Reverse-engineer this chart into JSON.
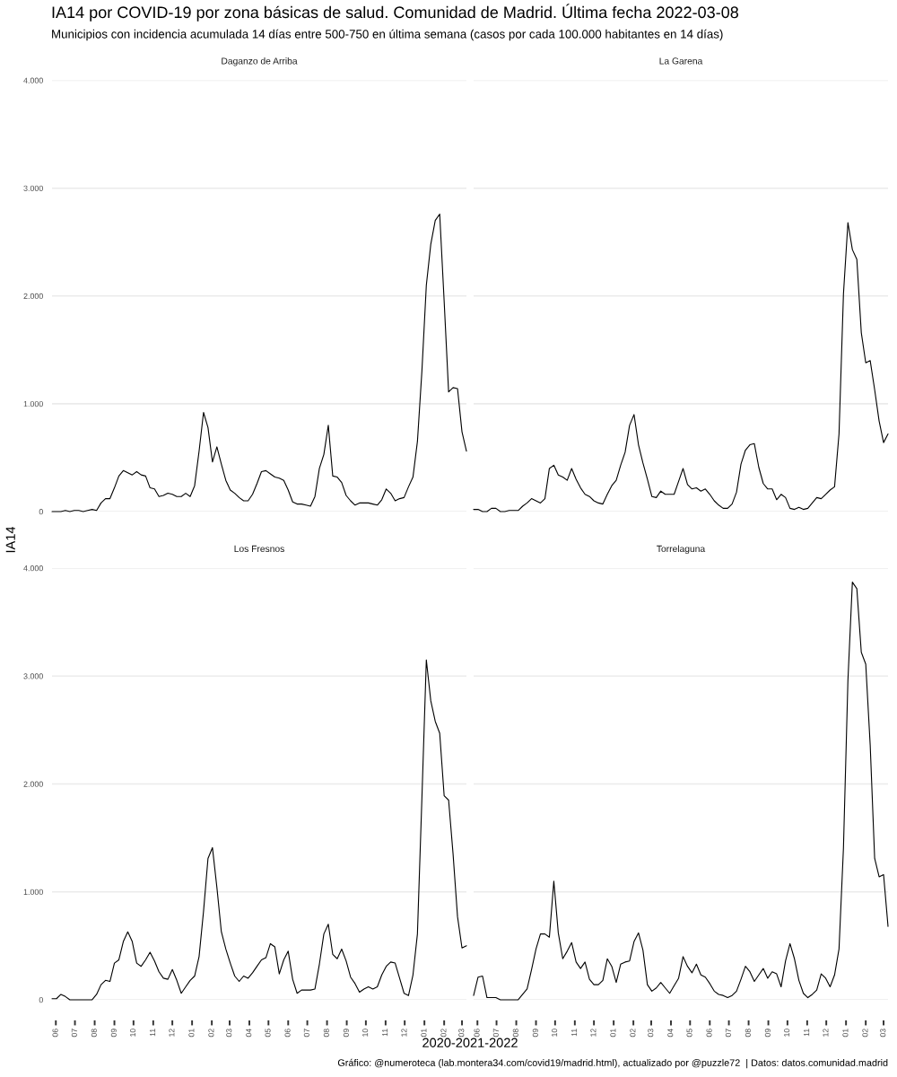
{
  "chart_data": [
    {
      "type": "other",
      "title": "IA14 por COVID-19 por zona básicas de salud. Comunidad de Madrid. Última fecha 2022-03-08",
      "subtitle": "Municipios con incidencia acumulada 14 días entre 500-750 en última semana (casos por cada 100.000 habitantes en 14 días)",
      "xlabel": "2020-2021-2022",
      "ylabel": "IA14",
      "annotations": [
        "Gráfico: @numeroteca (lab.montera34.com/covid19/madrid.html), actualizado por @puzzle72  | Datos: datos.comunidad.madrid"
      ]
    },
    {
      "type": "line",
      "title": "Daganzo de Arriba",
      "x": [
        "2020-05-26",
        "2020-06-02",
        "2020-06-09",
        "2020-06-16",
        "2020-06-23",
        "2020-06-30",
        "2020-07-07",
        "2020-07-14",
        "2020-07-21",
        "2020-07-28",
        "2020-08-04",
        "2020-08-11",
        "2020-08-18",
        "2020-08-25",
        "2020-09-01",
        "2020-09-08",
        "2020-09-15",
        "2020-09-22",
        "2020-09-29",
        "2020-10-06",
        "2020-10-13",
        "2020-10-20",
        "2020-10-27",
        "2020-11-03",
        "2020-11-10",
        "2020-11-17",
        "2020-11-24",
        "2020-12-01",
        "2020-12-08",
        "2020-12-15",
        "2020-12-22",
        "2020-12-29",
        "2021-01-05",
        "2021-01-12",
        "2021-01-19",
        "2021-01-26",
        "2021-02-02",
        "2021-02-09",
        "2021-02-16",
        "2021-02-23",
        "2021-03-02",
        "2021-03-09",
        "2021-03-16",
        "2021-03-23",
        "2021-03-30",
        "2021-04-06",
        "2021-04-13",
        "2021-04-20",
        "2021-04-27",
        "2021-05-04",
        "2021-05-11",
        "2021-05-18",
        "2021-05-25",
        "2021-06-01",
        "2021-06-08",
        "2021-06-15",
        "2021-06-22",
        "2021-06-29",
        "2021-07-06",
        "2021-07-13",
        "2021-07-20",
        "2021-07-27",
        "2021-08-03",
        "2021-08-10",
        "2021-08-17",
        "2021-08-24",
        "2021-08-31",
        "2021-09-07",
        "2021-09-14",
        "2021-09-21",
        "2021-09-28",
        "2021-10-05",
        "2021-10-12",
        "2021-10-19",
        "2021-10-26",
        "2021-11-02",
        "2021-11-09",
        "2021-11-16",
        "2021-11-23",
        "2021-11-30",
        "2021-12-07",
        "2021-12-14",
        "2021-12-21",
        "2021-12-28",
        "2022-01-04",
        "2022-01-11",
        "2022-01-18",
        "2022-01-25",
        "2022-02-01",
        "2022-02-08",
        "2022-02-15",
        "2022-02-22",
        "2022-03-01",
        "2022-03-08"
      ],
      "series": [
        {
          "color": "#000000",
          "values": [
            0,
            0,
            0,
            10,
            0,
            10,
            10,
            0,
            10,
            20,
            10,
            80,
            120,
            120,
            220,
            330,
            380,
            360,
            340,
            370,
            340,
            330,
            220,
            210,
            140,
            150,
            170,
            160,
            140,
            140,
            170,
            140,
            240,
            560,
            920,
            780,
            460,
            600,
            440,
            290,
            200,
            170,
            130,
            100,
            100,
            160,
            260,
            370,
            380,
            350,
            320,
            310,
            290,
            200,
            90,
            70,
            70,
            60,
            50,
            140,
            400,
            530,
            800,
            330,
            320,
            270,
            150,
            100,
            60,
            80,
            80,
            80,
            70,
            60,
            110,
            210,
            170,
            100,
            120,
            130,
            230,
            320,
            650,
            1300,
            2100,
            2480,
            2700,
            2760,
            1950,
            1110,
            1150,
            1140,
            740,
            560
          ]
        }
      ],
      "xlim": [
        "2020-05-26",
        "2022-03-08"
      ],
      "ylim": [
        0,
        4000
      ],
      "yticks": [
        0,
        {
          "value": 1000,
          "label": "1.000"
        },
        {
          "value": 2000,
          "label": "2.000"
        },
        {
          "value": 3000,
          "label": "3.000"
        },
        {
          "value": 4000,
          "label": "4.000"
        }
      ],
      "grid": "y",
      "tick_labels": "y"
    },
    {
      "type": "line",
      "title": "La Garena",
      "x": [
        "2020-05-26",
        "2020-06-02",
        "2020-06-09",
        "2020-06-16",
        "2020-06-23",
        "2020-06-30",
        "2020-07-07",
        "2020-07-14",
        "2020-07-21",
        "2020-07-28",
        "2020-08-04",
        "2020-08-11",
        "2020-08-18",
        "2020-08-25",
        "2020-09-01",
        "2020-09-08",
        "2020-09-15",
        "2020-09-22",
        "2020-09-29",
        "2020-10-06",
        "2020-10-13",
        "2020-10-20",
        "2020-10-27",
        "2020-11-03",
        "2020-11-10",
        "2020-11-17",
        "2020-11-24",
        "2020-12-01",
        "2020-12-08",
        "2020-12-15",
        "2020-12-22",
        "2020-12-29",
        "2021-01-05",
        "2021-01-12",
        "2021-01-19",
        "2021-01-26",
        "2021-02-02",
        "2021-02-09",
        "2021-02-16",
        "2021-02-23",
        "2021-03-02",
        "2021-03-09",
        "2021-03-16",
        "2021-03-23",
        "2021-03-30",
        "2021-04-06",
        "2021-04-13",
        "2021-04-20",
        "2021-04-27",
        "2021-05-04",
        "2021-05-11",
        "2021-05-18",
        "2021-05-25",
        "2021-06-01",
        "2021-06-08",
        "2021-06-15",
        "2021-06-22",
        "2021-06-29",
        "2021-07-06",
        "2021-07-13",
        "2021-07-20",
        "2021-07-27",
        "2021-08-03",
        "2021-08-10",
        "2021-08-17",
        "2021-08-24",
        "2021-08-31",
        "2021-09-07",
        "2021-09-14",
        "2021-09-21",
        "2021-09-28",
        "2021-10-05",
        "2021-10-12",
        "2021-10-19",
        "2021-10-26",
        "2021-11-02",
        "2021-11-09",
        "2021-11-16",
        "2021-11-23",
        "2021-11-30",
        "2021-12-07",
        "2021-12-14",
        "2021-12-21",
        "2021-12-28",
        "2022-01-04",
        "2022-01-11",
        "2022-01-18",
        "2022-01-25",
        "2022-02-01",
        "2022-02-08",
        "2022-02-15",
        "2022-02-22",
        "2022-03-01",
        "2022-03-08"
      ],
      "series": [
        {
          "color": "#000000",
          "values": [
            20,
            20,
            0,
            0,
            30,
            30,
            0,
            0,
            10,
            10,
            10,
            50,
            80,
            120,
            100,
            80,
            120,
            400,
            430,
            340,
            320,
            290,
            400,
            300,
            220,
            160,
            140,
            100,
            80,
            70,
            160,
            240,
            290,
            430,
            550,
            800,
            900,
            620,
            450,
            300,
            140,
            130,
            190,
            160,
            160,
            160,
            280,
            400,
            250,
            210,
            220,
            190,
            210,
            160,
            100,
            60,
            30,
            30,
            70,
            180,
            440,
            570,
            620,
            630,
            410,
            260,
            210,
            210,
            110,
            160,
            130,
            30,
            20,
            40,
            20,
            30,
            80,
            130,
            120,
            160,
            200,
            230,
            720,
            2020,
            2680,
            2430,
            2340,
            1660,
            1380,
            1400,
            1130,
            840,
            640,
            720
          ]
        }
      ],
      "xlim": [
        "2020-05-26",
        "2022-03-08"
      ],
      "ylim": [
        0,
        4000
      ],
      "yticks": [
        {
          "value": 0,
          "label": null
        },
        {
          "value": 1000,
          "label": null
        },
        {
          "value": 2000,
          "label": null
        },
        {
          "value": 3000,
          "label": null
        },
        {
          "value": 4000,
          "label": null
        }
      ],
      "grid": "y",
      "tick_labels": false
    },
    {
      "type": "line",
      "title": "Los Fresnos",
      "x": [
        "2020-05-26",
        "2020-06-02",
        "2020-06-09",
        "2020-06-16",
        "2020-06-23",
        "2020-06-30",
        "2020-07-07",
        "2020-07-14",
        "2020-07-21",
        "2020-07-28",
        "2020-08-04",
        "2020-08-11",
        "2020-08-18",
        "2020-08-25",
        "2020-09-01",
        "2020-09-08",
        "2020-09-15",
        "2020-09-22",
        "2020-09-29",
        "2020-10-06",
        "2020-10-13",
        "2020-10-20",
        "2020-10-27",
        "2020-11-03",
        "2020-11-10",
        "2020-11-17",
        "2020-11-24",
        "2020-12-01",
        "2020-12-08",
        "2020-12-15",
        "2020-12-22",
        "2020-12-29",
        "2021-01-05",
        "2021-01-12",
        "2021-01-19",
        "2021-01-26",
        "2021-02-02",
        "2021-02-09",
        "2021-02-16",
        "2021-02-23",
        "2021-03-02",
        "2021-03-09",
        "2021-03-16",
        "2021-03-23",
        "2021-03-30",
        "2021-04-06",
        "2021-04-13",
        "2021-04-20",
        "2021-04-27",
        "2021-05-04",
        "2021-05-11",
        "2021-05-18",
        "2021-05-25",
        "2021-06-01",
        "2021-06-08",
        "2021-06-15",
        "2021-06-22",
        "2021-06-29",
        "2021-07-06",
        "2021-07-13",
        "2021-07-20",
        "2021-07-27",
        "2021-08-03",
        "2021-08-10",
        "2021-08-17",
        "2021-08-24",
        "2021-08-31",
        "2021-09-07",
        "2021-09-14",
        "2021-09-21",
        "2021-09-28",
        "2021-10-05",
        "2021-10-12",
        "2021-10-19",
        "2021-10-26",
        "2021-11-02",
        "2021-11-09",
        "2021-11-16",
        "2021-11-23",
        "2021-11-30",
        "2021-12-07",
        "2021-12-14",
        "2021-12-21",
        "2021-12-28",
        "2022-01-04",
        "2022-01-11",
        "2022-01-18",
        "2022-01-25",
        "2022-02-01",
        "2022-02-08",
        "2022-02-15",
        "2022-02-22",
        "2022-03-01",
        "2022-03-08"
      ],
      "series": [
        {
          "color": "#000000",
          "values": [
            10,
            10,
            50,
            30,
            0,
            0,
            0,
            0,
            0,
            0,
            50,
            140,
            180,
            170,
            340,
            370,
            540,
            630,
            540,
            340,
            310,
            370,
            440,
            360,
            260,
            200,
            190,
            280,
            180,
            60,
            120,
            180,
            220,
            400,
            820,
            1310,
            1410,
            1040,
            630,
            470,
            340,
            220,
            170,
            220,
            200,
            250,
            310,
            370,
            390,
            520,
            490,
            240,
            370,
            450,
            190,
            60,
            90,
            90,
            90,
            100,
            330,
            610,
            700,
            420,
            380,
            470,
            360,
            210,
            150,
            70,
            100,
            120,
            100,
            120,
            230,
            310,
            350,
            340,
            200,
            60,
            40,
            230,
            610,
            1860,
            3150,
            2770,
            2580,
            2470,
            1890,
            1850,
            1350,
            770,
            480,
            500
          ]
        }
      ],
      "xlim": [
        "2020-05-26",
        "2022-03-08"
      ],
      "xticks": [
        {
          "value": "2020-06-01",
          "label": "06"
        },
        {
          "value": "2020-07-01",
          "label": "07"
        },
        {
          "value": "2020-08-01",
          "label": "08"
        },
        {
          "value": "2020-09-01",
          "label": "09"
        },
        {
          "value": "2020-10-01",
          "label": "10"
        },
        {
          "value": "2020-11-01",
          "label": "11"
        },
        {
          "value": "2020-12-01",
          "label": "12"
        },
        {
          "value": "2021-01-01",
          "label": "01"
        },
        {
          "value": "2021-02-01",
          "label": "02"
        },
        {
          "value": "2021-03-01",
          "label": "03"
        },
        {
          "value": "2021-04-01",
          "label": "04"
        },
        {
          "value": "2021-05-01",
          "label": "05"
        },
        {
          "value": "2021-06-01",
          "label": "06"
        },
        {
          "value": "2021-07-01",
          "label": "07"
        },
        {
          "value": "2021-08-01",
          "label": "08"
        },
        {
          "value": "2021-09-01",
          "label": "09"
        },
        {
          "value": "2021-10-01",
          "label": "10"
        },
        {
          "value": "2021-11-01",
          "label": "11"
        },
        {
          "value": "2021-12-01",
          "label": "12"
        },
        {
          "value": "2022-01-01",
          "label": "01"
        },
        {
          "value": "2022-02-01",
          "label": "02"
        },
        {
          "value": "2022-03-01",
          "label": "03"
        }
      ],
      "ylim": [
        0,
        4000
      ],
      "yticks": [
        0,
        {
          "value": 1000,
          "label": "1.000"
        },
        {
          "value": 2000,
          "label": "2.000"
        },
        {
          "value": 3000,
          "label": "3.000"
        },
        {
          "value": 4000,
          "label": "4.000"
        }
      ],
      "grid": "y"
    },
    {
      "type": "line",
      "title": "Torrelaguna",
      "x": [
        "2020-05-26",
        "2020-06-02",
        "2020-06-09",
        "2020-06-16",
        "2020-06-23",
        "2020-06-30",
        "2020-07-07",
        "2020-07-14",
        "2020-07-21",
        "2020-07-28",
        "2020-08-04",
        "2020-08-11",
        "2020-08-18",
        "2020-08-25",
        "2020-09-01",
        "2020-09-08",
        "2020-09-15",
        "2020-09-22",
        "2020-09-29",
        "2020-10-06",
        "2020-10-13",
        "2020-10-20",
        "2020-10-27",
        "2020-11-03",
        "2020-11-10",
        "2020-11-17",
        "2020-11-24",
        "2020-12-01",
        "2020-12-08",
        "2020-12-15",
        "2020-12-22",
        "2020-12-29",
        "2021-01-05",
        "2021-01-12",
        "2021-01-19",
        "2021-01-26",
        "2021-02-02",
        "2021-02-09",
        "2021-02-16",
        "2021-02-23",
        "2021-03-02",
        "2021-03-09",
        "2021-03-16",
        "2021-03-23",
        "2021-03-30",
        "2021-04-06",
        "2021-04-13",
        "2021-04-20",
        "2021-04-27",
        "2021-05-04",
        "2021-05-11",
        "2021-05-18",
        "2021-05-25",
        "2021-06-01",
        "2021-06-08",
        "2021-06-15",
        "2021-06-22",
        "2021-06-29",
        "2021-07-06",
        "2021-07-13",
        "2021-07-20",
        "2021-07-27",
        "2021-08-03",
        "2021-08-10",
        "2021-08-17",
        "2021-08-24",
        "2021-08-31",
        "2021-09-07",
        "2021-09-14",
        "2021-09-21",
        "2021-09-28",
        "2021-10-05",
        "2021-10-12",
        "2021-10-19",
        "2021-10-26",
        "2021-11-02",
        "2021-11-09",
        "2021-11-16",
        "2021-11-23",
        "2021-11-30",
        "2021-12-07",
        "2021-12-14",
        "2021-12-21",
        "2021-12-28",
        "2022-01-04",
        "2022-01-11",
        "2022-01-18",
        "2022-01-25",
        "2022-02-01",
        "2022-02-08",
        "2022-02-15",
        "2022-02-22",
        "2022-03-01",
        "2022-03-08"
      ],
      "series": [
        {
          "color": "#000000",
          "values": [
            40,
            210,
            220,
            20,
            20,
            20,
            0,
            0,
            0,
            0,
            0,
            50,
            100,
            280,
            470,
            610,
            610,
            580,
            1100,
            620,
            380,
            450,
            530,
            350,
            290,
            350,
            190,
            140,
            140,
            180,
            380,
            310,
            160,
            330,
            350,
            360,
            540,
            620,
            460,
            140,
            80,
            110,
            160,
            110,
            60,
            130,
            200,
            400,
            310,
            250,
            330,
            230,
            210,
            150,
            80,
            50,
            40,
            20,
            40,
            80,
            190,
            310,
            260,
            170,
            230,
            290,
            200,
            260,
            240,
            120,
            360,
            520,
            380,
            180,
            60,
            20,
            50,
            90,
            240,
            200,
            120,
            230,
            470,
            1410,
            2960,
            3870,
            3810,
            3220,
            3110,
            2360,
            1310,
            1140,
            1160,
            680
          ]
        }
      ],
      "xlim": [
        "2020-05-26",
        "2022-03-08"
      ],
      "xticks": [
        {
          "value": "2020-06-01",
          "label": "06"
        },
        {
          "value": "2020-07-01",
          "label": "07"
        },
        {
          "value": "2020-08-01",
          "label": "08"
        },
        {
          "value": "2020-09-01",
          "label": "09"
        },
        {
          "value": "2020-10-01",
          "label": "10"
        },
        {
          "value": "2020-11-01",
          "label": "11"
        },
        {
          "value": "2020-12-01",
          "label": "12"
        },
        {
          "value": "2021-01-01",
          "label": "01"
        },
        {
          "value": "2021-02-01",
          "label": "02"
        },
        {
          "value": "2021-03-01",
          "label": "03"
        },
        {
          "value": "2021-04-01",
          "label": "04"
        },
        {
          "value": "2021-05-01",
          "label": "05"
        },
        {
          "value": "2021-06-01",
          "label": "06"
        },
        {
          "value": "2021-07-01",
          "label": "07"
        },
        {
          "value": "2021-08-01",
          "label": "08"
        },
        {
          "value": "2021-09-01",
          "label": "09"
        },
        {
          "value": "2021-10-01",
          "label": "10"
        },
        {
          "value": "2021-11-01",
          "label": "11"
        },
        {
          "value": "2021-12-01",
          "label": "12"
        },
        {
          "value": "2022-01-01",
          "label": "01"
        },
        {
          "value": "2022-02-01",
          "label": "02"
        },
        {
          "value": "2022-03-01",
          "label": "03"
        }
      ],
      "ylim": [
        0,
        4000
      ],
      "yticks": [
        {
          "value": 0,
          "label": null
        },
        {
          "value": 1000,
          "label": null
        },
        {
          "value": 2000,
          "label": null
        },
        {
          "value": 3000,
          "label": null
        },
        {
          "value": 4000,
          "label": null
        }
      ],
      "grid": "y",
      "tick_labels": "x"
    }
  ]
}
